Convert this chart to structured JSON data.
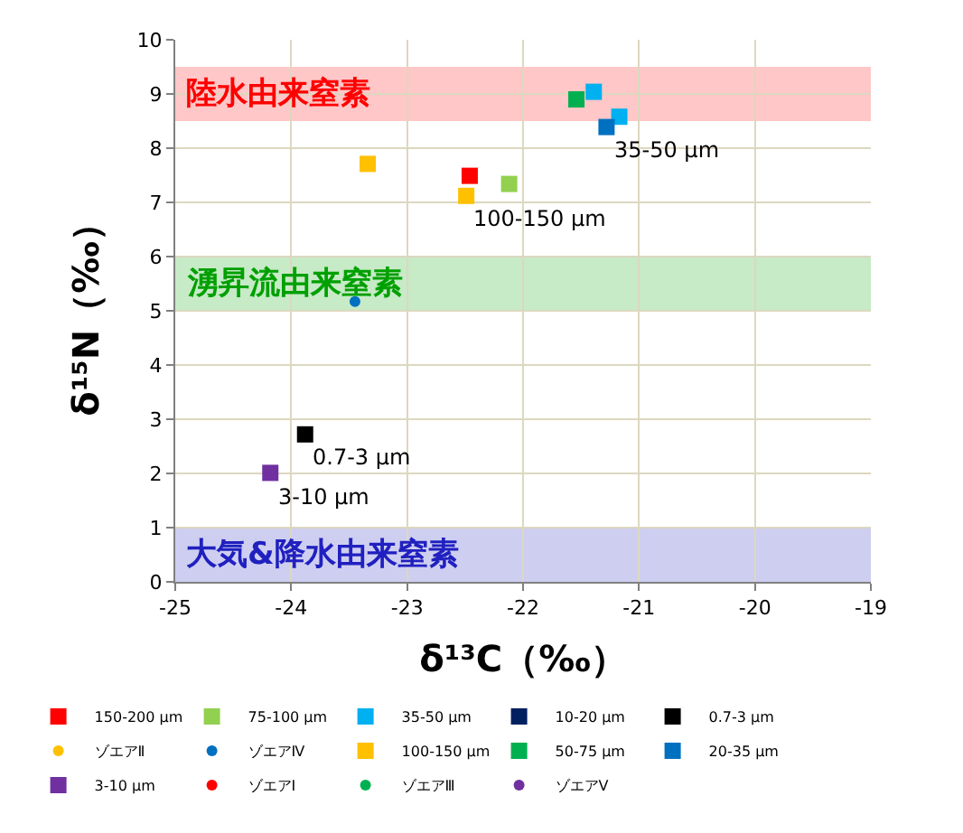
{
  "chart_data": {
    "type": "scatter",
    "xlabel": "δ¹³C（‰）",
    "ylabel": "δ¹⁵N（‰）",
    "xlim": [
      -25,
      -19
    ],
    "xticks": [
      -25,
      -24,
      -23,
      -22,
      -21,
      -20,
      -19
    ],
    "ylim": [
      0,
      10
    ],
    "yticks": [
      0,
      1,
      2,
      3,
      4,
      5,
      6,
      7,
      8,
      9,
      10
    ],
    "grid": true,
    "legend": "bottom",
    "series": [
      {
        "name": "150-200 μm",
        "color": "#ff0000",
        "marker": "square",
        "x": [
          -22.46
        ],
        "values": [
          7.49
        ]
      },
      {
        "name": "75-100 μm",
        "color": "#92d050",
        "marker": "square",
        "x": [
          -22.12
        ],
        "values": [
          7.34
        ]
      },
      {
        "name": "35-50 μm",
        "color": "#00b0f0",
        "marker": "square",
        "x": [
          -21.39,
          -21.17
        ],
        "values": [
          9.04,
          8.58
        ]
      },
      {
        "name": "10-20 μm",
        "color": "#002060",
        "marker": "square"
      },
      {
        "name": "0.7-3 μm",
        "color": "#000000",
        "marker": "square",
        "x": [
          -23.88
        ],
        "values": [
          2.72
        ]
      },
      {
        "name": "ゾエアⅡ",
        "color": "#ffc000",
        "marker": "circle"
      },
      {
        "name": "ゾエアⅣ",
        "color": "#0070c0",
        "marker": "circle",
        "x": [
          -23.45
        ],
        "values": [
          5.17
        ]
      },
      {
        "name": "100-150 μm",
        "color": "#ffc000",
        "marker": "square",
        "x": [
          -23.34,
          -22.49
        ],
        "values": [
          7.71,
          7.12
        ]
      },
      {
        "name": "50-75 μm",
        "color": "#00b050",
        "marker": "square",
        "x": [
          -21.54
        ],
        "values": [
          8.9
        ]
      },
      {
        "name": "20-35 μm",
        "color": "#0070c0",
        "marker": "square",
        "x": [
          -21.28
        ],
        "values": [
          8.39
        ]
      },
      {
        "name": "3-10 μm",
        "color": "#7030a0",
        "marker": "square",
        "x": [
          -24.18
        ],
        "values": [
          2.01
        ]
      },
      {
        "name": "ゾエアⅠ",
        "color": "#ff0000",
        "marker": "circle"
      },
      {
        "name": "ゾエアⅢ",
        "color": "#00b050",
        "marker": "circle"
      },
      {
        "name": "ゾエアⅤ",
        "color": "#7030a0",
        "marker": "circle"
      }
    ],
    "bands": [
      {
        "axis": "y",
        "from": 8.5,
        "to": 9.5,
        "label": "陸水由来窒素",
        "color": "#ff0000"
      },
      {
        "axis": "y",
        "from": 5,
        "to": 6,
        "label": "湧昇流由来窒素",
        "color": "#00a000"
      },
      {
        "axis": "y",
        "from": 0,
        "to": 1,
        "label": "大気&降水由来窒素",
        "color": "#2020c0"
      }
    ],
    "annotations": [
      {
        "text": "35-50 μm",
        "x": -21.28,
        "y": 8.39
      },
      {
        "text": "100-150 μm",
        "x": -22.49,
        "y": 7.12
      },
      {
        "text": "0.7-3 μm",
        "x": -23.88,
        "y": 2.72
      },
      {
        "text": "3-10 μm",
        "x": -24.18,
        "y": 2.01
      }
    ]
  }
}
